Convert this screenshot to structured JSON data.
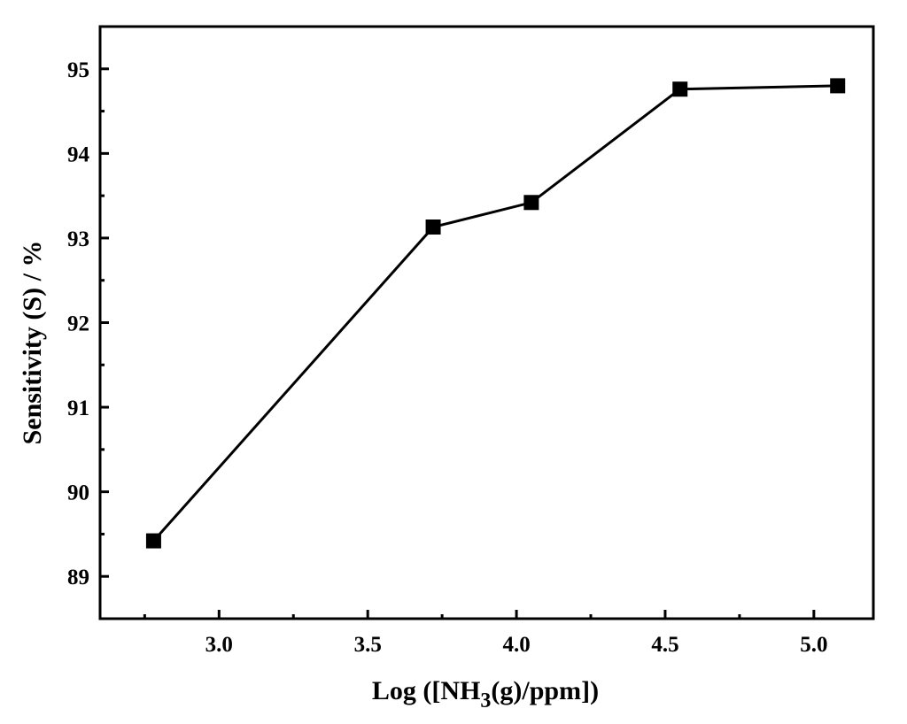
{
  "chart_data": {
    "type": "line",
    "title": "",
    "xlabel": {
      "prefix": "Log ([NH",
      "subscript": "3",
      "suffix": "(g)/ppm])"
    },
    "ylabel": "Sensitivity (S) / %",
    "xlim": [
      2.6,
      5.2
    ],
    "ylim": [
      88.5,
      95.5
    ],
    "x_ticks": [
      3.0,
      3.5,
      4.0,
      4.5,
      5.0
    ],
    "x_tick_labels": [
      "3.0",
      "3.5",
      "4.0",
      "4.5",
      "5.0"
    ],
    "y_ticks": [
      89,
      90,
      91,
      92,
      93,
      94,
      95
    ],
    "y_tick_labels": [
      "89",
      "90",
      "91",
      "92",
      "93",
      "94",
      "95"
    ],
    "grid": false,
    "legend": "none",
    "series": [
      {
        "marker": "square",
        "color": "#000000",
        "x": [
          2.78,
          3.72,
          4.05,
          4.55,
          5.08
        ],
        "y": [
          89.42,
          93.13,
          93.42,
          94.76,
          94.8
        ]
      }
    ]
  }
}
